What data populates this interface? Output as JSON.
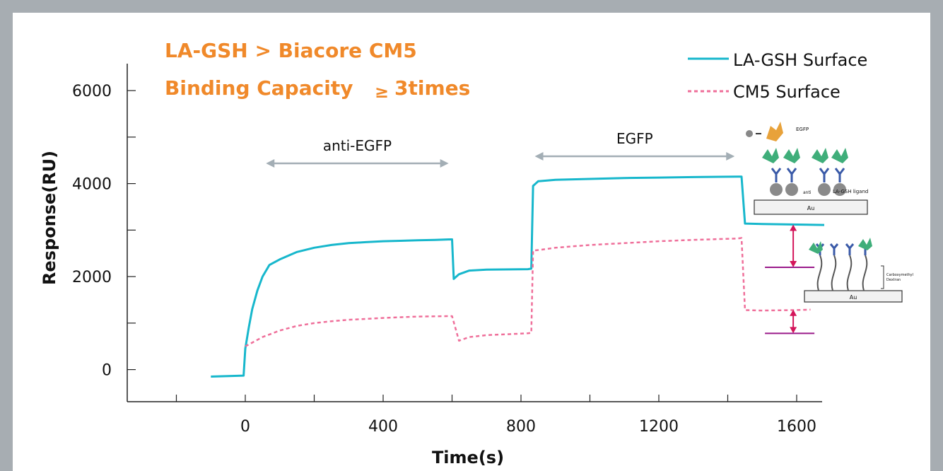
{
  "chart_data": {
    "type": "line",
    "title_line1": "LA-GSH > Biacore CM5",
    "title_line2": "Binding Capacity",
    "title_symbol": "≥",
    "title_suffix": "3times",
    "xlabel": "Time(s)",
    "ylabel": "Response(RU)",
    "xlim": [
      -260,
      1700
    ],
    "ylim": [
      -700,
      6500
    ],
    "x_ticks": [
      0,
      400,
      800,
      1200,
      1600
    ],
    "y_ticks": [
      0,
      2000,
      4000,
      6000
    ],
    "x_tick_labels": [
      "0",
      "400",
      "800",
      "1200",
      "1600"
    ],
    "y_tick_labels": [
      "0",
      "2000",
      "4000",
      "6000"
    ],
    "legend_position": "top-right",
    "colors": {
      "title": "#f0892a",
      "la_gsh": "#17b7cc",
      "cm5": "#ef6f9a",
      "axis": "#222222",
      "arrow": "#a3aeb5",
      "bracket": "#d4155a",
      "ref_line": "#9a1a8a"
    },
    "phase_annotations": [
      {
        "label": "anti-EGFP",
        "x_start": 60,
        "x_end": 590
      },
      {
        "label": "EGFP",
        "x_start": 840,
        "x_end": 1420
      }
    ],
    "series": [
      {
        "name": "LA-GSH Surface",
        "style": "solid",
        "points": [
          [
            -100,
            -150
          ],
          [
            -5,
            -130
          ],
          [
            0,
            450
          ],
          [
            10,
            900
          ],
          [
            20,
            1300
          ],
          [
            35,
            1700
          ],
          [
            50,
            2000
          ],
          [
            70,
            2250
          ],
          [
            100,
            2370
          ],
          [
            150,
            2530
          ],
          [
            200,
            2620
          ],
          [
            250,
            2680
          ],
          [
            300,
            2720
          ],
          [
            350,
            2740
          ],
          [
            400,
            2760
          ],
          [
            450,
            2770
          ],
          [
            500,
            2780
          ],
          [
            550,
            2790
          ],
          [
            595,
            2800
          ],
          [
            600,
            2800
          ],
          [
            605,
            1950
          ],
          [
            620,
            2050
          ],
          [
            650,
            2130
          ],
          [
            700,
            2150
          ],
          [
            820,
            2160
          ],
          [
            830,
            2170
          ],
          [
            835,
            3950
          ],
          [
            850,
            4050
          ],
          [
            900,
            4080
          ],
          [
            1000,
            4100
          ],
          [
            1100,
            4120
          ],
          [
            1200,
            4130
          ],
          [
            1300,
            4140
          ],
          [
            1430,
            4150
          ],
          [
            1440,
            4150
          ],
          [
            1450,
            3140
          ],
          [
            1500,
            3130
          ],
          [
            1600,
            3120
          ],
          [
            1680,
            3110
          ]
        ]
      },
      {
        "name": "CM5 Surface",
        "style": "dashed",
        "points": [
          [
            0,
            500
          ],
          [
            20,
            580
          ],
          [
            50,
            700
          ],
          [
            100,
            840
          ],
          [
            150,
            940
          ],
          [
            200,
            1000
          ],
          [
            250,
            1040
          ],
          [
            300,
            1070
          ],
          [
            400,
            1110
          ],
          [
            500,
            1140
          ],
          [
            590,
            1150
          ],
          [
            600,
            1150
          ],
          [
            620,
            620
          ],
          [
            650,
            700
          ],
          [
            700,
            740
          ],
          [
            820,
            780
          ],
          [
            830,
            790
          ],
          [
            835,
            2560
          ],
          [
            860,
            2580
          ],
          [
            900,
            2620
          ],
          [
            1000,
            2680
          ],
          [
            1100,
            2720
          ],
          [
            1200,
            2760
          ],
          [
            1300,
            2790
          ],
          [
            1430,
            2820
          ],
          [
            1440,
            2830
          ],
          [
            1450,
            1280
          ],
          [
            1500,
            1270
          ],
          [
            1600,
            1280
          ],
          [
            1640,
            1290
          ]
        ]
      }
    ],
    "capacity_brackets": [
      {
        "x": 1590,
        "from": 3120,
        "to": 2200
      },
      {
        "x": 1590,
        "from": 1290,
        "to": 780
      }
    ],
    "inset_top": {
      "egfp": "EGFP",
      "au": "Au",
      "ligand": "LA-GSH ligand",
      "marker": "anti"
    },
    "inset_bottom": {
      "au": "Au",
      "matrix_line1": "Carboxymethyl",
      "matrix_line2": "Dextran"
    }
  }
}
